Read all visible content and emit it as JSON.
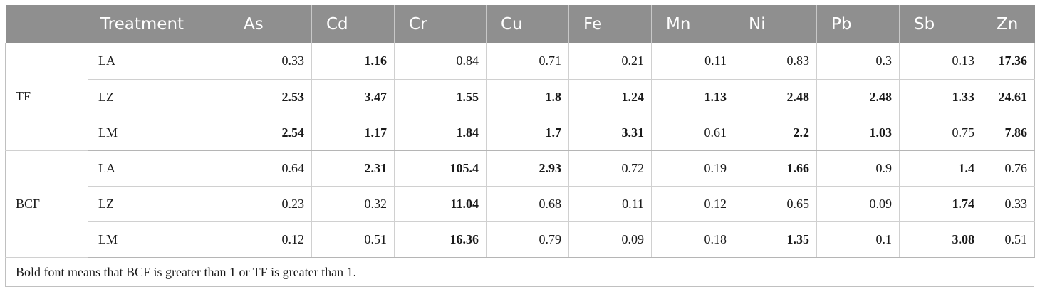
{
  "table": {
    "columns": [
      "",
      "Treatment",
      "As",
      "Cd",
      "Cr",
      "Cu",
      "Fe",
      "Mn",
      "Ni",
      "Pb",
      "Sb",
      "Zn"
    ],
    "groups": [
      {
        "label": "TF",
        "rows": [
          {
            "treatment": "LA",
            "values": [
              "0.33",
              "1.16",
              "0.84",
              "0.71",
              "0.21",
              "0.11",
              "0.83",
              "0.3",
              "0.13",
              "17.36"
            ],
            "bold": [
              false,
              true,
              false,
              false,
              false,
              false,
              false,
              false,
              false,
              true
            ]
          },
          {
            "treatment": "LZ",
            "values": [
              "2.53",
              "3.47",
              "1.55",
              "1.8",
              "1.24",
              "1.13",
              "2.48",
              "2.48",
              "1.33",
              "24.61"
            ],
            "bold": [
              true,
              true,
              true,
              true,
              true,
              true,
              true,
              true,
              true,
              true
            ]
          },
          {
            "treatment": "LM",
            "values": [
              "2.54",
              "1.17",
              "1.84",
              "1.7",
              "3.31",
              "0.61",
              "2.2",
              "1.03",
              "0.75",
              "7.86"
            ],
            "bold": [
              true,
              true,
              true,
              true,
              true,
              false,
              true,
              true,
              false,
              true
            ]
          }
        ]
      },
      {
        "label": "BCF",
        "rows": [
          {
            "treatment": "LA",
            "values": [
              "0.64",
              "2.31",
              "105.4",
              "2.93",
              "0.72",
              "0.19",
              "1.66",
              "0.9",
              "1.4",
              "0.76"
            ],
            "bold": [
              false,
              true,
              true,
              true,
              false,
              false,
              true,
              false,
              true,
              false
            ]
          },
          {
            "treatment": "LZ",
            "values": [
              "0.23",
              "0.32",
              "11.04",
              "0.68",
              "0.11",
              "0.12",
              "0.65",
              "0.09",
              "1.74",
              "0.33"
            ],
            "bold": [
              false,
              false,
              true,
              false,
              false,
              false,
              false,
              false,
              true,
              false
            ]
          },
          {
            "treatment": "LM",
            "values": [
              "0.12",
              "0.51",
              "16.36",
              "0.79",
              "0.09",
              "0.18",
              "1.35",
              "0.1",
              "3.08",
              "0.51"
            ],
            "bold": [
              false,
              false,
              true,
              false,
              false,
              false,
              true,
              false,
              true,
              false
            ]
          }
        ]
      }
    ],
    "footnote": "Bold font means that BCF is greater than 1 or TF is greater than 1."
  },
  "colors": {
    "header_bg": "#8f8f8f",
    "header_text": "#ffffff",
    "grid": "#d0d0d0"
  }
}
